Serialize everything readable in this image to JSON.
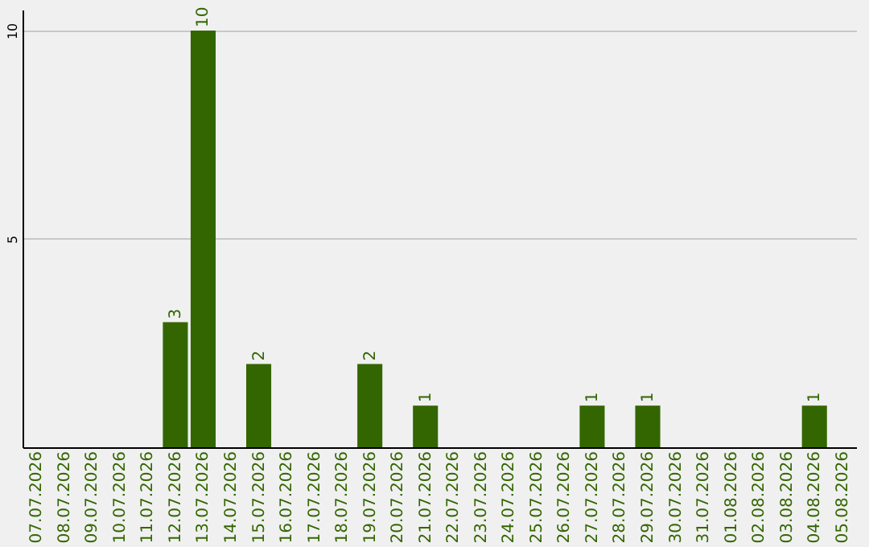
{
  "chart_data": {
    "type": "bar",
    "categories": [
      "07.07.2026",
      "08.07.2026",
      "09.07.2026",
      "10.07.2026",
      "11.07.2026",
      "12.07.2026",
      "13.07.2026",
      "14.07.2026",
      "15.07.2026",
      "16.07.2026",
      "17.07.2026",
      "18.07.2026",
      "19.07.2026",
      "20.07.2026",
      "21.07.2026",
      "22.07.2026",
      "23.07.2026",
      "24.07.2026",
      "25.07.2026",
      "26.07.2026",
      "27.07.2026",
      "28.07.2026",
      "29.07.2026",
      "30.07.2026",
      "31.07.2026",
      "01.08.2026",
      "02.08.2026",
      "03.08.2026",
      "04.08.2026",
      "05.08.2026"
    ],
    "values": [
      0,
      0,
      0,
      0,
      0,
      3,
      10,
      0,
      2,
      0,
      0,
      0,
      2,
      0,
      1,
      0,
      0,
      0,
      0,
      0,
      1,
      0,
      1,
      0,
      0,
      0,
      0,
      0,
      1,
      0
    ],
    "value_labels": [
      null,
      null,
      null,
      null,
      null,
      "3",
      "10",
      null,
      "2",
      null,
      null,
      null,
      "2",
      null,
      "1",
      null,
      null,
      null,
      null,
      null,
      "1",
      null,
      "1",
      null,
      null,
      null,
      null,
      null,
      "1",
      null
    ],
    "color": "#336600",
    "ylim": [
      0,
      10.5
    ],
    "yticks": [
      5,
      10
    ],
    "grid": "y"
  }
}
